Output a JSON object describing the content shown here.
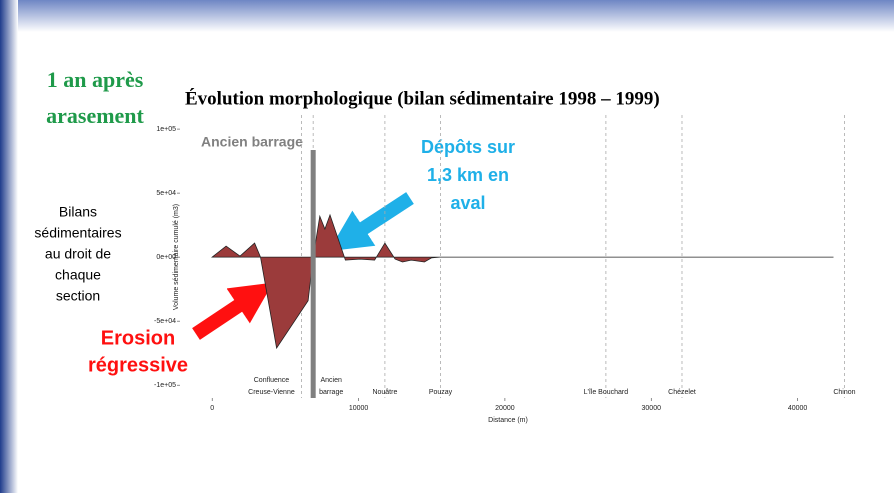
{
  "slide": {
    "heading": [
      "1 an après",
      "arasement"
    ],
    "note": [
      "Bilans",
      "sédimentaires",
      "au droit de",
      "chaque",
      "section"
    ],
    "deposit_note": [
      "Dépôts sur",
      "1,3 km en",
      "aval"
    ],
    "erosion_note": [
      "Erosion",
      "régressive"
    ]
  },
  "chart_data": {
    "type": "area",
    "title": "Évolution morphologique (bilan sédimentaire 1998 – 1999)",
    "x_label": "Distance (m)",
    "y_label": "Volume sédimentaire cumulé (m3)",
    "x": [
      0,
      950,
      1900,
      2900,
      3300,
      4400,
      6550,
      6900,
      7350,
      7700,
      8050,
      9100,
      10100,
      11100,
      11800,
      12500,
      13000,
      13600,
      14500,
      15000,
      15550,
      42450
    ],
    "values": [
      0,
      8600,
      800,
      11000,
      0,
      -71000,
      -34000,
      0,
      32000,
      22000,
      33000,
      -2300,
      -1500,
      -2300,
      11000,
      -1500,
      -3800,
      -2300,
      -3800,
      -500,
      0,
      0
    ],
    "color": "#9b3b3b",
    "xlim": [
      -2200,
      44400
    ],
    "ylim": [
      -110000,
      111000
    ],
    "xticks": [
      0,
      10000,
      20000,
      30000,
      40000
    ],
    "yticks": [
      {
        "value": -100000,
        "label": "-1e+05"
      },
      {
        "value": -50000,
        "label": "-5e+04"
      },
      {
        "value": 0,
        "label": "0e+00"
      },
      {
        "value": 50000,
        "label": "5e+04"
      },
      {
        "value": 100000,
        "label": "1e+05"
      }
    ],
    "sections": [
      {
        "label": [
          "Confluence",
          "Creuse-Vienne"
        ],
        "x": 6100
      },
      {
        "label": [
          "Ancien",
          "barrage"
        ],
        "x": 6900
      },
      {
        "label": [
          "Nouâtre"
        ],
        "x": 11800
      },
      {
        "label": [
          "Pouzay"
        ],
        "x": 15600
      },
      {
        "label": [
          "L'île Bouchard"
        ],
        "x": 26900
      },
      {
        "label": [
          "Chézelet"
        ],
        "x": 32100
      },
      {
        "label": [
          "Chinon"
        ],
        "x": 43200
      }
    ],
    "dam": {
      "label": "Ancien barrage",
      "x": 6900
    }
  }
}
